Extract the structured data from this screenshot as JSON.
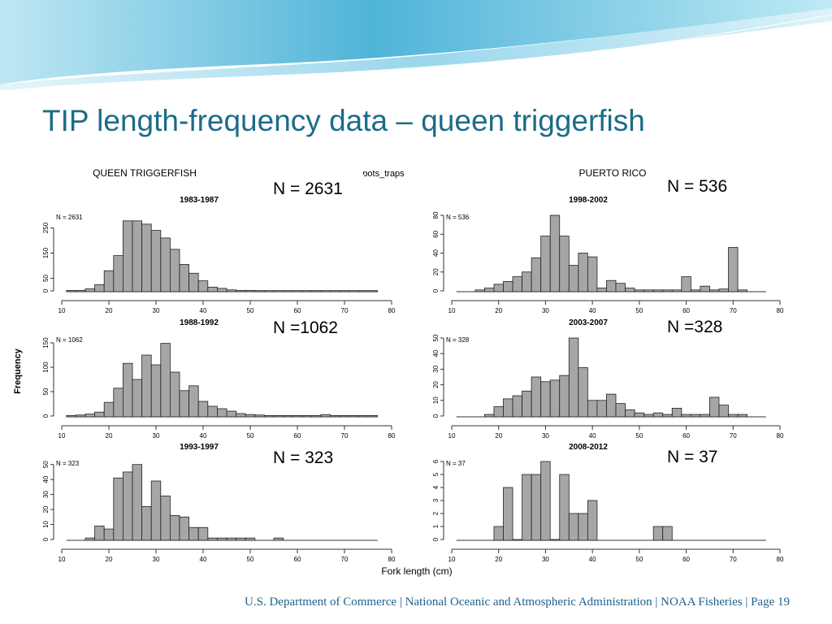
{
  "slide": {
    "title": "TIP length-frequency data – queen triggerfish",
    "footer": "U.S. Department of Commerce  |  National Oceanic and Atmospheric Administration  |  NOAA Fisheries  |  Page 19"
  },
  "figure": {
    "species_label": "QUEEN TRIGGERFISH",
    "gear_label": "pots_traps",
    "region_label": "PUERTO RICO",
    "ylabel": "Frequency",
    "xlabel": "Fork length (cm)"
  },
  "chart_data": [
    {
      "type": "bar",
      "title": "1983-1987",
      "inset_label": "N = 2631",
      "callout": "N = 2631",
      "bin_width": 2,
      "xlim": [
        10,
        80
      ],
      "xticks": [
        10,
        20,
        30,
        40,
        50,
        60,
        70,
        80
      ],
      "ylim": [
        0,
        300
      ],
      "yticks": [
        0,
        50,
        150,
        250
      ],
      "bins": [
        [
          12,
          2
        ],
        [
          14,
          2
        ],
        [
          16,
          8
        ],
        [
          18,
          25
        ],
        [
          20,
          80
        ],
        [
          22,
          140
        ],
        [
          24,
          278
        ],
        [
          26,
          278
        ],
        [
          28,
          265
        ],
        [
          30,
          240
        ],
        [
          32,
          210
        ],
        [
          34,
          165
        ],
        [
          36,
          105
        ],
        [
          38,
          70
        ],
        [
          40,
          40
        ],
        [
          42,
          15
        ],
        [
          44,
          10
        ],
        [
          46,
          4
        ],
        [
          48,
          2
        ],
        [
          50,
          2
        ],
        [
          52,
          1
        ],
        [
          54,
          1
        ],
        [
          56,
          1
        ],
        [
          58,
          1
        ],
        [
          60,
          1
        ],
        [
          62,
          1
        ],
        [
          64,
          1
        ],
        [
          66,
          1
        ],
        [
          68,
          1
        ],
        [
          70,
          1
        ],
        [
          72,
          1
        ],
        [
          74,
          1
        ],
        [
          76,
          1
        ]
      ]
    },
    {
      "type": "bar",
      "title": "1998-2002",
      "inset_label": "N = 536",
      "callout": "N = 536",
      "bin_width": 2,
      "xlim": [
        10,
        80
      ],
      "xticks": [
        10,
        20,
        30,
        40,
        50,
        60,
        70,
        80
      ],
      "ylim": [
        0,
        80
      ],
      "yticks": [
        0,
        20,
        40,
        60,
        80
      ],
      "bins": [
        [
          16,
          1
        ],
        [
          18,
          3
        ],
        [
          20,
          7
        ],
        [
          22,
          10
        ],
        [
          24,
          15
        ],
        [
          26,
          20
        ],
        [
          28,
          35
        ],
        [
          30,
          58
        ],
        [
          32,
          84
        ],
        [
          34,
          58
        ],
        [
          36,
          27
        ],
        [
          38,
          40
        ],
        [
          40,
          36
        ],
        [
          42,
          3
        ],
        [
          44,
          11
        ],
        [
          46,
          8
        ],
        [
          48,
          3
        ],
        [
          50,
          1
        ],
        [
          52,
          1
        ],
        [
          54,
          1
        ],
        [
          56,
          1
        ],
        [
          58,
          1
        ],
        [
          60,
          15
        ],
        [
          62,
          1
        ],
        [
          64,
          5
        ],
        [
          66,
          1
        ],
        [
          68,
          2
        ],
        [
          70,
          46
        ],
        [
          72,
          1
        ]
      ]
    },
    {
      "type": "bar",
      "title": "1988-1992",
      "inset_label": "N = 1062",
      "callout": "N =1062",
      "bin_width": 2,
      "xlim": [
        10,
        80
      ],
      "xticks": [
        10,
        20,
        30,
        40,
        50,
        60,
        70,
        80
      ],
      "ylim": [
        0,
        160
      ],
      "yticks": [
        0,
        50,
        100,
        150
      ],
      "bins": [
        [
          12,
          1
        ],
        [
          14,
          2
        ],
        [
          16,
          4
        ],
        [
          18,
          8
        ],
        [
          20,
          28
        ],
        [
          22,
          57
        ],
        [
          24,
          108
        ],
        [
          26,
          75
        ],
        [
          28,
          125
        ],
        [
          30,
          105
        ],
        [
          32,
          149
        ],
        [
          34,
          90
        ],
        [
          36,
          52
        ],
        [
          38,
          62
        ],
        [
          40,
          30
        ],
        [
          42,
          20
        ],
        [
          44,
          15
        ],
        [
          46,
          10
        ],
        [
          48,
          5
        ],
        [
          50,
          3
        ],
        [
          52,
          2
        ],
        [
          54,
          1
        ],
        [
          56,
          1
        ],
        [
          58,
          1
        ],
        [
          60,
          1
        ],
        [
          62,
          1
        ],
        [
          64,
          1
        ],
        [
          66,
          3
        ],
        [
          68,
          1
        ],
        [
          70,
          1
        ],
        [
          72,
          1
        ],
        [
          74,
          1
        ],
        [
          76,
          1
        ]
      ]
    },
    {
      "type": "bar",
      "title": "2003-2007",
      "inset_label": "N = 328",
      "callout": "N =328",
      "bin_width": 2,
      "xlim": [
        10,
        80
      ],
      "xticks": [
        10,
        20,
        30,
        40,
        50,
        60,
        70,
        80
      ],
      "ylim": [
        0,
        50
      ],
      "yticks": [
        0,
        10,
        20,
        30,
        40,
        50
      ],
      "bins": [
        [
          18,
          1
        ],
        [
          20,
          6
        ],
        [
          22,
          11
        ],
        [
          24,
          13
        ],
        [
          26,
          16
        ],
        [
          28,
          25
        ],
        [
          30,
          22
        ],
        [
          32,
          23
        ],
        [
          34,
          26
        ],
        [
          36,
          52
        ],
        [
          38,
          31
        ],
        [
          40,
          10
        ],
        [
          42,
          10
        ],
        [
          44,
          14
        ],
        [
          46,
          8
        ],
        [
          48,
          4
        ],
        [
          50,
          2
        ],
        [
          52,
          1
        ],
        [
          54,
          2
        ],
        [
          56,
          1
        ],
        [
          58,
          5
        ],
        [
          60,
          1
        ],
        [
          62,
          1
        ],
        [
          64,
          1
        ],
        [
          66,
          12
        ],
        [
          68,
          7
        ],
        [
          70,
          1
        ],
        [
          72,
          1
        ]
      ]
    },
    {
      "type": "bar",
      "title": "1993-1997",
      "inset_label": "N = 323",
      "callout": "N = 323",
      "bin_width": 2,
      "xlim": [
        10,
        80
      ],
      "xticks": [
        10,
        20,
        30,
        40,
        50,
        60,
        70,
        80
      ],
      "ylim": [
        0,
        52
      ],
      "yticks": [
        0,
        10,
        20,
        30,
        40,
        50
      ],
      "bins": [
        [
          16,
          1
        ],
        [
          18,
          9
        ],
        [
          20,
          7
        ],
        [
          22,
          41
        ],
        [
          24,
          45
        ],
        [
          26,
          50
        ],
        [
          28,
          22
        ],
        [
          30,
          39
        ],
        [
          32,
          29
        ],
        [
          34,
          16
        ],
        [
          36,
          15
        ],
        [
          38,
          8
        ],
        [
          40,
          8
        ],
        [
          42,
          1
        ],
        [
          44,
          1
        ],
        [
          46,
          1
        ],
        [
          48,
          1
        ],
        [
          50,
          1
        ],
        [
          56,
          1
        ]
      ]
    },
    {
      "type": "bar",
      "title": "2008-2012",
      "inset_label": "N = 37",
      "callout": "N = 37",
      "bin_width": 2,
      "xlim": [
        10,
        80
      ],
      "xticks": [
        10,
        20,
        30,
        40,
        50,
        60,
        70,
        80
      ],
      "ylim": [
        0,
        6
      ],
      "yticks": [
        0,
        1,
        2,
        3,
        4,
        5,
        6
      ],
      "bins": [
        [
          20,
          1
        ],
        [
          22,
          4
        ],
        [
          24,
          0
        ],
        [
          26,
          5
        ],
        [
          28,
          5
        ],
        [
          30,
          6
        ],
        [
          32,
          0
        ],
        [
          34,
          5
        ],
        [
          36,
          2
        ],
        [
          38,
          2
        ],
        [
          40,
          3
        ],
        [
          54,
          1
        ],
        [
          56,
          1
        ]
      ]
    }
  ]
}
